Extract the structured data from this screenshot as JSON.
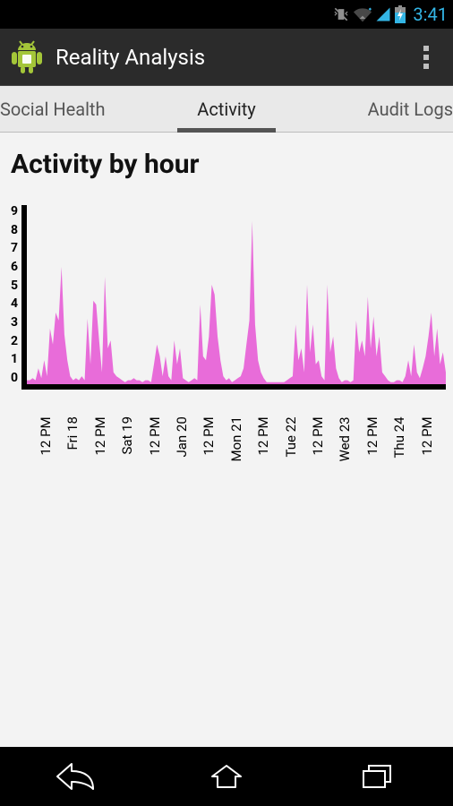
{
  "status_bar": {
    "time": "3:41",
    "time_color": "#33b5e5",
    "icon_color": "#8f8f8f",
    "icon_blue": "#33b5e5"
  },
  "action_bar": {
    "title": "Reality Analysis",
    "bg": "#2b2b2b",
    "android_green": "#a4c639"
  },
  "tabs": {
    "items": [
      {
        "label": "Social Health",
        "active": false
      },
      {
        "label": "Activity",
        "active": true
      },
      {
        "label": "Audit Logs",
        "active": false
      }
    ],
    "bg": "#e9e9e9",
    "indicator_color": "#545454"
  },
  "chart": {
    "title": "Activity by hour",
    "type": "area",
    "fill_color": "#e86cd9",
    "axis_color": "#000000",
    "background_color": "#f3f3f3",
    "ylim": [
      0,
      9
    ],
    "ytick_step": 1,
    "y_ticks": [
      "9",
      "8",
      "7",
      "6",
      "5",
      "4",
      "3",
      "2",
      "1",
      "0"
    ],
    "x_labels": [
      "12 PM",
      "Fri 18",
      "12 PM",
      "Sat 19",
      "12 PM",
      "Jan 20",
      "12 PM",
      "Mon 21",
      "12 PM",
      "Tue 22",
      "12 PM",
      "Wed 23",
      "12 PM",
      "Thu 24",
      "12 PM"
    ],
    "values": [
      0.2,
      0.2,
      0.3,
      0.2,
      0.8,
      0.3,
      1.2,
      0.4,
      2.8,
      2.0,
      3.6,
      3.2,
      5.9,
      2.5,
      1.2,
      0.4,
      0.2,
      0.3,
      0.2,
      0.4,
      0.2,
      3.3,
      1.0,
      4.2,
      4.0,
      2.2,
      0.6,
      5.4,
      1.8,
      2.2,
      0.6,
      0.4,
      0.3,
      0.2,
      0.1,
      0.2,
      0.2,
      0.3,
      0.2,
      0.2,
      0.1,
      0.2,
      0.2,
      0.1,
      1.0,
      2.0,
      1.4,
      0.4,
      1.4,
      0.4,
      0.2,
      2.2,
      1.0,
      1.8,
      0.3,
      0.2,
      0.1,
      0.2,
      0.3,
      0.2,
      4.0,
      1.4,
      1.2,
      2.4,
      5.0,
      4.5,
      2.4,
      1.2,
      0.4,
      0.2,
      0.3,
      0.1,
      0.2,
      0.3,
      0.4,
      0.8,
      2.0,
      3.2,
      8.2,
      3.0,
      1.2,
      0.6,
      0.3,
      0.1,
      0.1,
      0.1,
      0.1,
      0.1,
      0.1,
      0.1,
      0.2,
      0.3,
      0.4,
      3.0,
      1.2,
      1.8,
      0.6,
      5.0,
      1.6,
      3.0,
      1.0,
      1.2,
      0.4,
      0.2,
      5.0,
      1.6,
      2.4,
      0.8,
      0.3,
      0.1,
      0.2,
      0.2,
      0.1,
      0.2,
      3.2,
      1.6,
      2.2,
      1.4,
      4.4,
      1.8,
      3.4,
      1.4,
      2.4,
      0.6,
      0.4,
      0.2,
      0.1,
      0.1,
      0.2,
      0.2,
      0.1,
      0.4,
      1.2,
      0.4,
      2.0,
      0.6,
      0.3,
      0.8,
      1.4,
      2.4,
      3.6,
      1.4,
      2.8,
      1.0,
      1.6,
      0.6
    ],
    "axis_width": 6,
    "title_fontsize": 30,
    "label_fontsize": 15
  },
  "nav_bar": {
    "icon_color": "#ffffff"
  }
}
